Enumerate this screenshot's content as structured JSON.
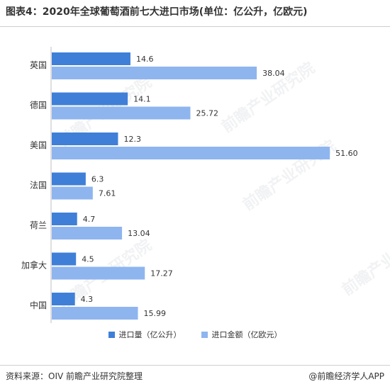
{
  "title": "图表4：2020年全球葡萄酒前七大进口市场(单位：亿公升，亿欧元)",
  "source": "资料来源：OIV 前瞻产业研究院整理",
  "brand": "@前瞻经济学人APP",
  "watermark": "前瞻产业研究院",
  "colors": {
    "volume": "#3f7fd8",
    "value": "#8fb5ef"
  },
  "chart_data": {
    "type": "bar",
    "orientation": "horizontal",
    "categories": [
      "英国",
      "德国",
      "美国",
      "法国",
      "荷兰",
      "加拿大",
      "中国"
    ],
    "series": [
      {
        "name": "进口量（亿公升）",
        "values": [
          14.6,
          14.1,
          12.3,
          6.3,
          4.7,
          4.5,
          4.3
        ],
        "labels": [
          "14.6",
          "14.1",
          "12.3",
          "6.3",
          "4.7",
          "4.5",
          "4.3"
        ]
      },
      {
        "name": "进口金额（亿欧元）",
        "values": [
          38.04,
          25.72,
          51.6,
          7.61,
          13.04,
          17.27,
          15.99
        ],
        "labels": [
          "38.04",
          "25.72",
          "51.60",
          "7.61",
          "13.04",
          "17.27",
          "15.99"
        ]
      }
    ],
    "legend": "bottom",
    "grid": false
  }
}
